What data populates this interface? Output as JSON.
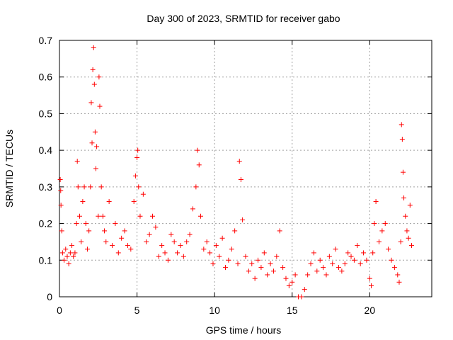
{
  "chart_data": {
    "type": "scatter",
    "title": "Day 300 of 2023, SRMTID for receiver gabo",
    "xlabel": "GPS time / hours",
    "ylabel": "SRMTID / TECUs",
    "xlim": [
      0,
      24
    ],
    "ylim": [
      0,
      0.7
    ],
    "x_ticks": [
      0,
      5,
      10,
      15,
      20
    ],
    "y_ticks": [
      0,
      0.1,
      0.2,
      0.3,
      0.4,
      0.5,
      0.6,
      0.7
    ],
    "x_tick_labels": [
      "0",
      "5",
      "10",
      "15",
      "20"
    ],
    "y_tick_labels": [
      "0",
      "0.1",
      "0.2",
      "0.3",
      "0.4",
      "0.5",
      "0.6",
      "0.7"
    ],
    "grid": true,
    "marker": "+",
    "color": "#ff0000",
    "series": [
      {
        "name": "SRMTID",
        "points": [
          [
            0.05,
            0.32
          ],
          [
            0.08,
            0.29
          ],
          [
            0.1,
            0.25
          ],
          [
            0.15,
            0.18
          ],
          [
            0.2,
            0.12
          ],
          [
            0.3,
            0.1
          ],
          [
            0.4,
            0.13
          ],
          [
            0.5,
            0.11
          ],
          [
            0.6,
            0.09
          ],
          [
            0.7,
            0.12
          ],
          [
            0.8,
            0.14
          ],
          [
            0.9,
            0.11
          ],
          [
            1.0,
            0.12
          ],
          [
            1.1,
            0.2
          ],
          [
            1.15,
            0.37
          ],
          [
            1.2,
            0.3
          ],
          [
            1.3,
            0.22
          ],
          [
            1.4,
            0.15
          ],
          [
            1.5,
            0.26
          ],
          [
            1.6,
            0.3
          ],
          [
            1.7,
            0.2
          ],
          [
            1.8,
            0.13
          ],
          [
            1.9,
            0.18
          ],
          [
            2.0,
            0.3
          ],
          [
            2.05,
            0.53
          ],
          [
            2.1,
            0.42
          ],
          [
            2.15,
            0.62
          ],
          [
            2.2,
            0.68
          ],
          [
            2.25,
            0.58
          ],
          [
            2.3,
            0.45
          ],
          [
            2.35,
            0.35
          ],
          [
            2.4,
            0.41
          ],
          [
            2.5,
            0.22
          ],
          [
            2.55,
            0.6
          ],
          [
            2.6,
            0.52
          ],
          [
            2.7,
            0.3
          ],
          [
            2.8,
            0.22
          ],
          [
            2.9,
            0.18
          ],
          [
            3.0,
            0.15
          ],
          [
            3.2,
            0.26
          ],
          [
            3.4,
            0.14
          ],
          [
            3.6,
            0.2
          ],
          [
            3.8,
            0.12
          ],
          [
            4.0,
            0.16
          ],
          [
            4.2,
            0.18
          ],
          [
            4.4,
            0.14
          ],
          [
            4.6,
            0.13
          ],
          [
            4.8,
            0.26
          ],
          [
            4.9,
            0.33
          ],
          [
            5.0,
            0.38
          ],
          [
            5.05,
            0.4
          ],
          [
            5.1,
            0.3
          ],
          [
            5.2,
            0.22
          ],
          [
            5.4,
            0.28
          ],
          [
            5.6,
            0.15
          ],
          [
            5.8,
            0.17
          ],
          [
            6.0,
            0.22
          ],
          [
            6.2,
            0.19
          ],
          [
            6.4,
            0.11
          ],
          [
            6.6,
            0.14
          ],
          [
            6.8,
            0.12
          ],
          [
            7.0,
            0.1
          ],
          [
            7.2,
            0.17
          ],
          [
            7.4,
            0.15
          ],
          [
            7.6,
            0.12
          ],
          [
            7.8,
            0.14
          ],
          [
            8.0,
            0.11
          ],
          [
            8.2,
            0.15
          ],
          [
            8.4,
            0.17
          ],
          [
            8.6,
            0.24
          ],
          [
            8.8,
            0.3
          ],
          [
            8.9,
            0.4
          ],
          [
            9.0,
            0.36
          ],
          [
            9.1,
            0.22
          ],
          [
            9.3,
            0.13
          ],
          [
            9.5,
            0.15
          ],
          [
            9.7,
            0.12
          ],
          [
            9.9,
            0.09
          ],
          [
            10.1,
            0.14
          ],
          [
            10.3,
            0.11
          ],
          [
            10.5,
            0.16
          ],
          [
            10.7,
            0.08
          ],
          [
            10.9,
            0.1
          ],
          [
            11.1,
            0.13
          ],
          [
            11.3,
            0.18
          ],
          [
            11.5,
            0.09
          ],
          [
            11.6,
            0.37
          ],
          [
            11.7,
            0.32
          ],
          [
            11.8,
            0.21
          ],
          [
            12.0,
            0.11
          ],
          [
            12.2,
            0.07
          ],
          [
            12.4,
            0.09
          ],
          [
            12.6,
            0.05
          ],
          [
            12.8,
            0.1
          ],
          [
            13.0,
            0.08
          ],
          [
            13.2,
            0.12
          ],
          [
            13.4,
            0.06
          ],
          [
            13.6,
            0.09
          ],
          [
            13.8,
            0.07
          ],
          [
            14.0,
            0.11
          ],
          [
            14.2,
            0.18
          ],
          [
            14.4,
            0.08
          ],
          [
            14.6,
            0.05
          ],
          [
            14.8,
            0.03
          ],
          [
            15.0,
            0.04
          ],
          [
            15.2,
            0.06
          ],
          [
            15.4,
            0.0
          ],
          [
            15.6,
            0.0
          ],
          [
            15.8,
            0.02
          ],
          [
            16.0,
            0.06
          ],
          [
            16.2,
            0.09
          ],
          [
            16.4,
            0.12
          ],
          [
            16.6,
            0.07
          ],
          [
            16.8,
            0.1
          ],
          [
            17.0,
            0.08
          ],
          [
            17.2,
            0.06
          ],
          [
            17.4,
            0.11
          ],
          [
            17.6,
            0.09
          ],
          [
            17.8,
            0.13
          ],
          [
            18.0,
            0.08
          ],
          [
            18.2,
            0.07
          ],
          [
            18.4,
            0.09
          ],
          [
            18.6,
            0.12
          ],
          [
            18.8,
            0.11
          ],
          [
            19.0,
            0.1
          ],
          [
            19.2,
            0.14
          ],
          [
            19.4,
            0.09
          ],
          [
            19.6,
            0.12
          ],
          [
            19.8,
            0.1
          ],
          [
            20.0,
            0.05
          ],
          [
            20.1,
            0.03
          ],
          [
            20.2,
            0.12
          ],
          [
            20.3,
            0.2
          ],
          [
            20.4,
            0.26
          ],
          [
            20.6,
            0.15
          ],
          [
            20.8,
            0.18
          ],
          [
            21.0,
            0.2
          ],
          [
            21.2,
            0.13
          ],
          [
            21.4,
            0.1
          ],
          [
            21.6,
            0.08
          ],
          [
            21.8,
            0.06
          ],
          [
            21.9,
            0.04
          ],
          [
            22.0,
            0.15
          ],
          [
            22.05,
            0.47
          ],
          [
            22.1,
            0.43
          ],
          [
            22.15,
            0.34
          ],
          [
            22.2,
            0.27
          ],
          [
            22.3,
            0.22
          ],
          [
            22.4,
            0.18
          ],
          [
            22.5,
            0.16
          ],
          [
            22.6,
            0.25
          ],
          [
            22.7,
            0.14
          ]
        ]
      }
    ]
  }
}
